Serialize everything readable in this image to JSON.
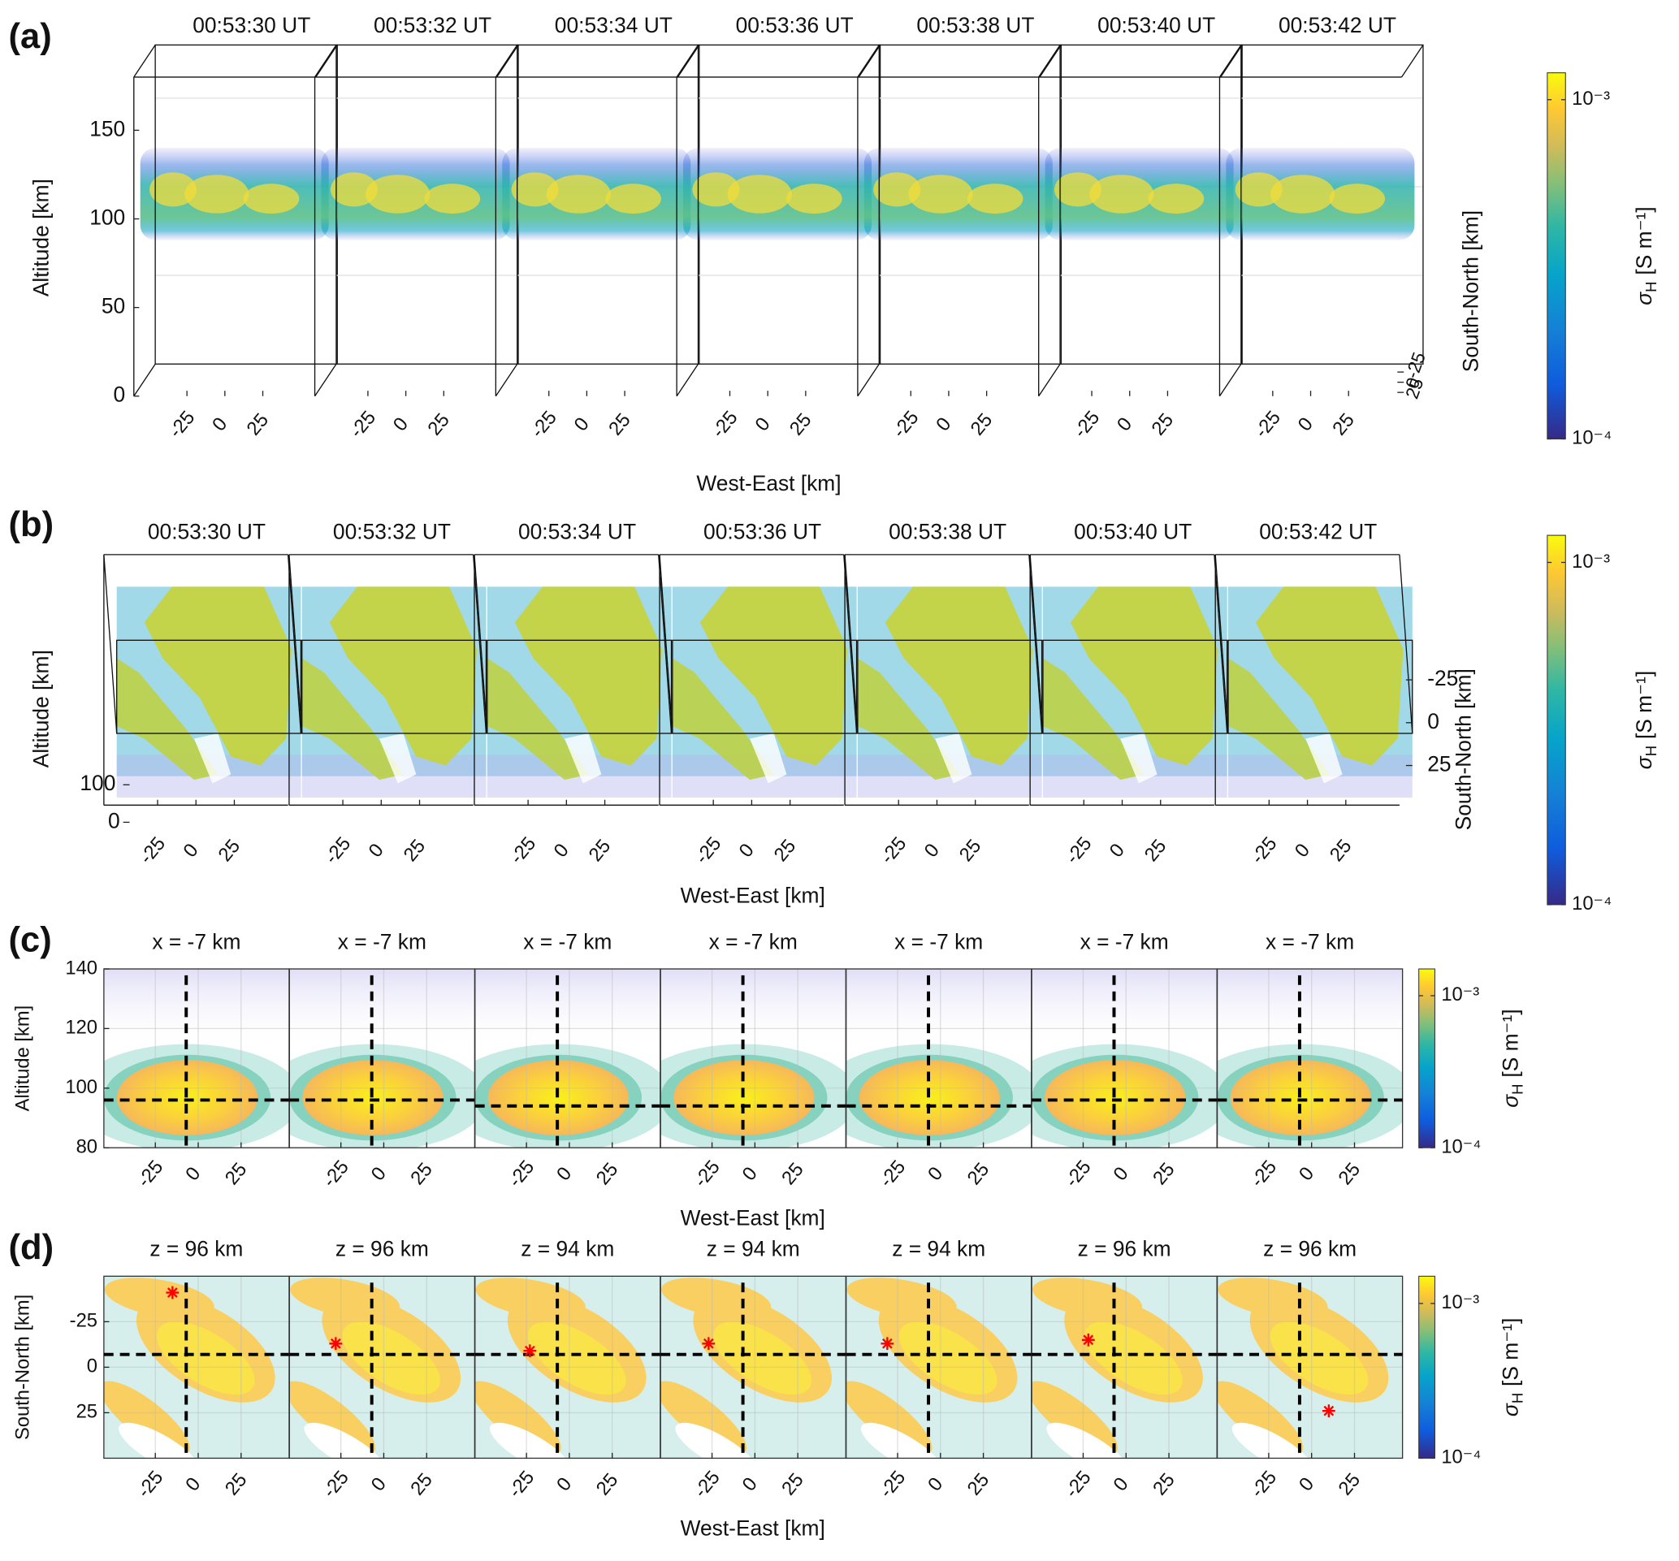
{
  "chart_data": [
    {
      "type": "volume3d",
      "panel_label": "(a)",
      "subplot_titles": [
        "00:53:30 UT",
        "00:53:32 UT",
        "00:53:34 UT",
        "00:53:36 UT",
        "00:53:38 UT",
        "00:53:40 UT",
        "00:53:42 UT"
      ],
      "xlabel": "West-East [km]",
      "ylabel": "Altitude [km]",
      "y2label": "South-North [km]",
      "xlim": [
        -60,
        60
      ],
      "xticks": [
        -25,
        0,
        25
      ],
      "ylim": [
        0,
        180
      ],
      "yticks": [
        0,
        50,
        100,
        150
      ],
      "y2lim": [
        -50,
        50
      ],
      "y2ticks": [
        -25,
        0,
        25
      ],
      "colorbar": {
        "scale": "log",
        "clim": [
          0.0001,
          0.0012
        ],
        "ticks": [
          {
            "value": 0.0001,
            "label": "10⁻⁴"
          },
          {
            "value": 0.001,
            "label": "10⁻³"
          }
        ],
        "label": {
          "symbol": "σ",
          "subscript": "H",
          "unit": "[S m⁻¹]"
        }
      }
    },
    {
      "type": "volume3d-top",
      "panel_label": "(b)",
      "subplot_titles": [
        "00:53:30 UT",
        "00:53:32 UT",
        "00:53:34 UT",
        "00:53:36 UT",
        "00:53:38 UT",
        "00:53:40 UT",
        "00:53:42 UT"
      ],
      "xlabel": "West-East [km]",
      "ylabel": "Altitude [km]",
      "y2label": "South-North [km]",
      "xlim": [
        -60,
        60
      ],
      "xticks": [
        -25,
        0,
        25
      ],
      "ylim": [
        0,
        180
      ],
      "yticks": [
        0,
        100
      ],
      "y2lim": [
        -50,
        50
      ],
      "y2ticks": [
        -25,
        0,
        25
      ],
      "colorbar": {
        "scale": "log",
        "clim": [
          0.0001,
          0.0012
        ],
        "ticks": [
          {
            "value": 0.0001,
            "label": "10⁻⁴"
          },
          {
            "value": 0.001,
            "label": "10⁻³"
          }
        ],
        "label": {
          "symbol": "σ",
          "subscript": "H",
          "unit": "[S m⁻¹]"
        }
      }
    },
    {
      "type": "heatmap-vertical",
      "panel_label": "(c)",
      "subplot_titles": [
        "x = -7 km",
        "x = -7 km",
        "x = -7 km",
        "x = -7 km",
        "x = -7 km",
        "x = -7 km",
        "x = -7 km"
      ],
      "xlabel": "West-East [km]",
      "ylabel": "Altitude [km]",
      "xlim": [
        -55,
        53
      ],
      "xticks": [
        -25,
        0,
        25
      ],
      "ylim": [
        80,
        140
      ],
      "yticks": [
        80,
        100,
        120,
        140
      ],
      "y_reversed": false,
      "grid": true,
      "crosshair_x": [
        -7,
        -7,
        -7,
        -7,
        -7,
        -7,
        -7
      ],
      "crosshair_y": [
        96,
        96,
        94,
        94,
        94,
        96,
        96
      ],
      "colorbar": {
        "scale": "log",
        "clim": [
          0.0001,
          0.0015
        ],
        "ticks": [
          {
            "value": 0.0001,
            "label": "10⁻⁴"
          },
          {
            "value": 0.001,
            "label": "10⁻³"
          }
        ],
        "label": {
          "symbol": "σ",
          "subscript": "H",
          "unit": "[S m⁻¹]"
        }
      }
    },
    {
      "type": "heatmap-horizontal",
      "panel_label": "(d)",
      "subplot_titles": [
        "z = 96 km",
        "z = 96 km",
        "z = 94 km",
        "z = 94 km",
        "z = 94 km",
        "z = 96 km",
        "z = 96 km"
      ],
      "xlabel": "West-East [km]",
      "ylabel": "South-North [km]",
      "xlim": [
        -55,
        53
      ],
      "xticks": [
        -25,
        0,
        25
      ],
      "ylim": [
        -50,
        50
      ],
      "yticks": [
        -25,
        0,
        25
      ],
      "y_reversed": true,
      "grid": true,
      "crosshair_x": [
        -7,
        -7,
        -7,
        -7,
        -7,
        -7,
        -7
      ],
      "crosshair_y": [
        -7,
        -7,
        -7,
        -7,
        -7,
        -7,
        -7
      ],
      "markers_x": [
        -15,
        -28,
        -23,
        -27,
        -31,
        -22,
        10
      ],
      "markers_y": [
        -41,
        -13,
        -9,
        -13,
        -13,
        -15,
        24
      ],
      "marker_color": "#ff0000",
      "colorbar": {
        "scale": "log",
        "clim": [
          0.0001,
          0.0015
        ],
        "ticks": [
          {
            "value": 0.0001,
            "label": "10⁻⁴"
          },
          {
            "value": 0.001,
            "label": "10⁻³"
          }
        ],
        "label": {
          "symbol": "σ",
          "subscript": "H",
          "unit": "[S m⁻¹]"
        }
      }
    }
  ]
}
